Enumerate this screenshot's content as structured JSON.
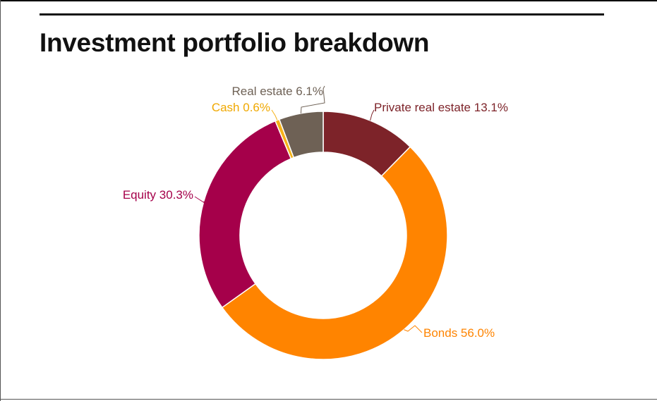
{
  "title": "Investment portfolio breakdown",
  "chart_data": {
    "type": "pie",
    "variant": "donut",
    "title": "Investment portfolio breakdown",
    "slices": [
      {
        "label": "Private real estate",
        "value": 13.1,
        "display": "Private real estate 13.1%",
        "color": "#7d2329"
      },
      {
        "label": "Bonds",
        "value": 56.0,
        "display": "Bonds 56.0%",
        "color": "#ff8400"
      },
      {
        "label": "Equity",
        "value": 30.3,
        "display": "Equity 30.3%",
        "color": "#a5004a"
      },
      {
        "label": "Cash",
        "value": 0.6,
        "display": "Cash 0.6%",
        "color": "#f5b21a"
      },
      {
        "label": "Real estate",
        "value": 6.1,
        "display": "Real estate 6.1%",
        "color": "#6e6155"
      }
    ],
    "label_colors": {
      "Private real estate": "#7d2329",
      "Bonds": "#ff8400",
      "Equity": "#a5004a",
      "Cash": "#f5b21a",
      "Real estate": "#6e6155"
    },
    "start_angle": "top",
    "direction": "clockwise",
    "legend": "none"
  }
}
